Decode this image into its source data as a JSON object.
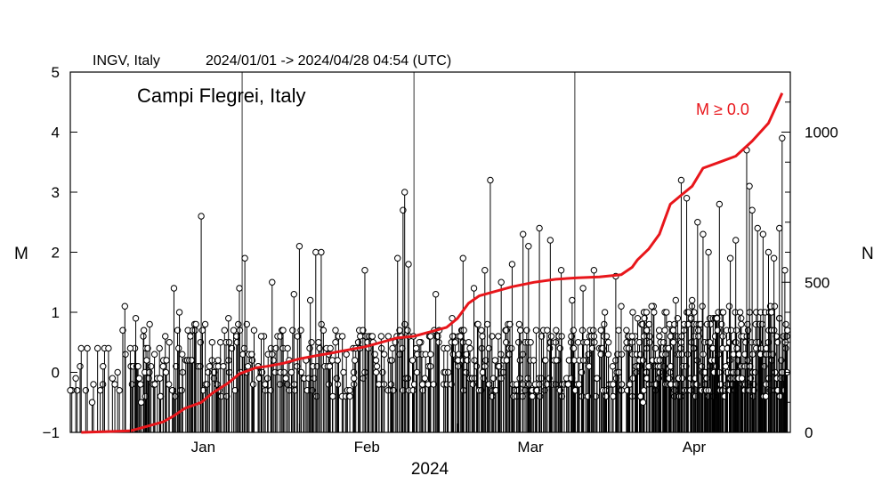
{
  "chart_data": {
    "type": "stem-and-cumulative",
    "header": {
      "source": "INGV, Italy",
      "period": "2024/01/01 -> 2024/04/28 04:54  (UTC)"
    },
    "place": "Campi Flegrei, Italy",
    "legend": "M ≥ 0.0",
    "xlabel": "2024",
    "ylabel_left": "M",
    "ylabel_right": "N",
    "x_range_days": [
      -11,
      121
    ],
    "y_left": {
      "min": -1,
      "max": 5,
      "ticks": [
        "−1",
        "0",
        "1",
        "2",
        "3",
        "4",
        "5"
      ],
      "tick_values": [
        -1,
        0,
        1,
        2,
        3,
        4,
        5
      ]
    },
    "y_right": {
      "min": 0,
      "max": 1200,
      "label_values": [
        0,
        500,
        1000
      ],
      "labels": [
        "0",
        "500",
        "1000"
      ],
      "minor_step": 100
    },
    "months": [
      {
        "label": "Jan",
        "start_day": 0,
        "label_day": 15
      },
      {
        "label": "Feb",
        "start_day": 31,
        "label_day": 45
      },
      {
        "label": "Mar",
        "start_day": 60,
        "label_day": 75
      },
      {
        "label": "Apr",
        "start_day": 91,
        "label_day": 105
      }
    ],
    "cumulative_color": "#e8161b",
    "cumulative_series": {
      "name": "M ≥ 0.0",
      "day": [
        -9,
        0,
        3,
        6,
        8,
        10,
        13,
        15,
        18,
        20,
        23,
        25,
        28,
        31,
        34,
        37,
        40,
        43,
        46,
        49,
        52,
        55,
        58,
        60,
        62,
        64,
        66,
        70,
        74,
        78,
        82,
        86,
        90,
        92,
        93,
        95,
        97,
        98,
        99,
        101,
        103,
        105,
        108,
        111,
        114,
        117,
        119.5
      ],
      "N": [
        0,
        5,
        20,
        35,
        55,
        80,
        100,
        130,
        165,
        195,
        215,
        220,
        230,
        245,
        255,
        265,
        275,
        285,
        300,
        315,
        320,
        335,
        350,
        380,
        430,
        455,
        465,
        485,
        500,
        510,
        515,
        518,
        525,
        550,
        575,
        610,
        660,
        710,
        760,
        790,
        820,
        880,
        900,
        920,
        970,
        1030,
        1130
      ]
    },
    "notable_events": [
      {
        "day": -11,
        "M": -0.3
      },
      {
        "day": -10,
        "M": -0.1
      },
      {
        "day": -9,
        "M": 0.4
      },
      {
        "day": -7,
        "M": -0.5
      },
      {
        "day": -6,
        "M": 0.4
      },
      {
        "day": -5,
        "M": 0.1
      },
      {
        "day": -4,
        "M": 0.4
      },
      {
        "day": -2,
        "M": -0.3
      },
      {
        "day": -1,
        "M": 1.1
      },
      {
        "day": 0,
        "M": 0.4
      },
      {
        "day": 1,
        "M": 0.9
      },
      {
        "day": 2,
        "M": -0.5
      },
      {
        "day": 3,
        "M": 0.2
      },
      {
        "day": 6,
        "M": 0.1
      },
      {
        "day": 8,
        "M": 1.4
      },
      {
        "day": 9,
        "M": 1.0
      },
      {
        "day": 11,
        "M": 0.6
      },
      {
        "day": 13,
        "M": 2.6
      },
      {
        "day": 15,
        "M": 0.5
      },
      {
        "day": 18,
        "M": 0.9
      },
      {
        "day": 20,
        "M": 1.4
      },
      {
        "day": 21,
        "M": 1.9
      },
      {
        "day": 24,
        "M": 0.6
      },
      {
        "day": 26,
        "M": 1.5
      },
      {
        "day": 28,
        "M": 0.7
      },
      {
        "day": 30,
        "M": 1.3
      },
      {
        "day": 31,
        "M": 2.1
      },
      {
        "day": 33,
        "M": 1.2
      },
      {
        "day": 34,
        "M": 2.0
      },
      {
        "day": 35,
        "M": 2.0
      },
      {
        "day": 38,
        "M": 0.2
      },
      {
        "day": 41,
        "M": -0.1
      },
      {
        "day": 43,
        "M": 1.7
      },
      {
        "day": 46,
        "M": 0.6
      },
      {
        "day": 49,
        "M": 1.9
      },
      {
        "day": 50,
        "M": 2.7
      },
      {
        "day": 50.3,
        "M": 3.0
      },
      {
        "day": 51,
        "M": 1.8
      },
      {
        "day": 53,
        "M": 0.5
      },
      {
        "day": 56,
        "M": 1.3
      },
      {
        "day": 59,
        "M": 0.9
      },
      {
        "day": 61,
        "M": 1.9
      },
      {
        "day": 63,
        "M": 1.4
      },
      {
        "day": 65,
        "M": 1.7
      },
      {
        "day": 66,
        "M": 3.2
      },
      {
        "day": 68,
        "M": 1.5
      },
      {
        "day": 70,
        "M": 1.8
      },
      {
        "day": 72,
        "M": 2.3
      },
      {
        "day": 73,
        "M": 2.1
      },
      {
        "day": 75,
        "M": 2.4
      },
      {
        "day": 77,
        "M": 2.2
      },
      {
        "day": 79,
        "M": 1.7
      },
      {
        "day": 81,
        "M": 1.2
      },
      {
        "day": 83,
        "M": 1.4
      },
      {
        "day": 85,
        "M": 1.7
      },
      {
        "day": 87,
        "M": 1.0
      },
      {
        "day": 89,
        "M": 1.6
      },
      {
        "day": 90,
        "M": 1.1
      },
      {
        "day": 92,
        "M": 0.6
      },
      {
        "day": 94,
        "M": -0.5
      },
      {
        "day": 96,
        "M": 1.0
      },
      {
        "day": 98,
        "M": 0.7
      },
      {
        "day": 100,
        "M": 1.2
      },
      {
        "day": 101,
        "M": 3.2
      },
      {
        "day": 102,
        "M": 2.9
      },
      {
        "day": 103,
        "M": 1.2
      },
      {
        "day": 104,
        "M": 2.5
      },
      {
        "day": 105,
        "M": 2.3
      },
      {
        "day": 106,
        "M": 2.0
      },
      {
        "day": 108,
        "M": 2.8
      },
      {
        "day": 110,
        "M": 1.9
      },
      {
        "day": 111,
        "M": 2.2
      },
      {
        "day": 113,
        "M": 3.7
      },
      {
        "day": 113.5,
        "M": 3.1
      },
      {
        "day": 114,
        "M": 2.7
      },
      {
        "day": 115,
        "M": 2.4
      },
      {
        "day": 116,
        "M": 2.3
      },
      {
        "day": 117,
        "M": 2.0
      },
      {
        "day": 118,
        "M": 1.9
      },
      {
        "day": 119,
        "M": 2.4
      },
      {
        "day": 119.5,
        "M": 3.9
      },
      {
        "day": 120,
        "M": 1.7
      }
    ],
    "x_ticks_major_days": [
      -11,
      0,
      31,
      60,
      91,
      121
    ]
  }
}
